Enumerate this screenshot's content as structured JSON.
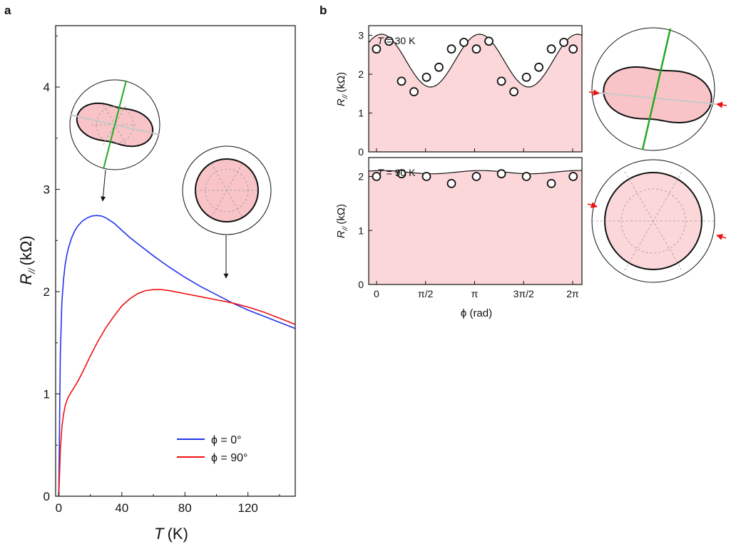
{
  "panel_a_label": "a",
  "panel_b_label": "b",
  "chart_data": [
    {
      "type": "line",
      "panel": "a",
      "xlabel_var": "T",
      "xlabel_unit": "(K)",
      "ylabel_var": "R",
      "ylabel_sub": "//",
      "ylabel_unit": "(kΩ)",
      "xlim": [
        -2,
        150
      ],
      "ylim": [
        0,
        4.6
      ],
      "x_ticks": [
        0,
        40,
        80,
        120
      ],
      "y_ticks": [
        0,
        1,
        2,
        3,
        4
      ],
      "grid": false,
      "legend_position": "bottom-right",
      "series": [
        {
          "name": "ϕ = 0°",
          "color": "#2233ee",
          "x": [
            0,
            1,
            2,
            3,
            4,
            5,
            6,
            8,
            10,
            12,
            15,
            18,
            21,
            24,
            27,
            30,
            35,
            40,
            45,
            50,
            60,
            70,
            80,
            90,
            100,
            110,
            120,
            130,
            140,
            150
          ],
          "y": [
            0.0,
            1.4,
            1.9,
            2.12,
            2.26,
            2.35,
            2.42,
            2.52,
            2.59,
            2.64,
            2.69,
            2.72,
            2.74,
            2.745,
            2.74,
            2.72,
            2.67,
            2.6,
            2.53,
            2.47,
            2.35,
            2.24,
            2.14,
            2.05,
            1.97,
            1.89,
            1.82,
            1.76,
            1.7,
            1.64
          ]
        },
        {
          "name": "ϕ = 90°",
          "color": "#ee1111",
          "x": [
            0,
            1,
            2,
            3,
            4,
            5,
            6,
            8,
            10,
            12,
            15,
            20,
            25,
            30,
            35,
            40,
            45,
            50,
            55,
            60,
            65,
            70,
            80,
            90,
            100,
            110,
            120,
            130,
            140,
            150
          ],
          "y": [
            0.0,
            0.45,
            0.68,
            0.8,
            0.88,
            0.93,
            0.97,
            1.02,
            1.07,
            1.12,
            1.21,
            1.37,
            1.52,
            1.65,
            1.76,
            1.86,
            1.93,
            1.98,
            2.01,
            2.02,
            2.02,
            2.01,
            1.98,
            1.95,
            1.92,
            1.89,
            1.85,
            1.8,
            1.74,
            1.68
          ]
        }
      ]
    },
    {
      "type": "scatter",
      "panel": "b-top",
      "annotation_var": "T",
      "annotation_value": "= 30 K",
      "ylabel_var": "R",
      "ylabel_sub": "//",
      "ylabel_unit": "(kΩ)",
      "xlim": [
        -0.25,
        6.58
      ],
      "ylim": [
        0,
        3.25
      ],
      "y_ticks": [
        0,
        1,
        2,
        3
      ],
      "x_tick_values": [
        0,
        1.5708,
        3.1416,
        4.7124,
        6.2832
      ],
      "x_tick_labels": [
        "0",
        "π/2",
        "π",
        "3π/2",
        "2π"
      ],
      "points_x": [
        0.0,
        0.4,
        0.8,
        1.2,
        1.6,
        2.0,
        2.4,
        2.8,
        3.2,
        3.6,
        4.0,
        4.4,
        4.8,
        5.2,
        5.6,
        6.0,
        6.3
      ],
      "points_y": [
        2.65,
        2.85,
        1.82,
        1.55,
        1.92,
        2.18,
        2.65,
        2.82,
        2.65,
        2.85,
        1.82,
        1.55,
        1.92,
        2.18,
        2.65,
        2.82,
        2.65
      ],
      "fit": {
        "offset": 2.35,
        "amplitude": 0.68,
        "frequency": 2,
        "phase": 0.32
      },
      "fill_color": "#fcd7d9"
    },
    {
      "type": "scatter",
      "panel": "b-bottom",
      "annotation_var": "T",
      "annotation_value": "= 90 K",
      "ylabel_var": "R",
      "ylabel_sub": "//",
      "ylabel_unit": "(kΩ)",
      "xlabel": "ϕ (rad)",
      "xlim": [
        -0.25,
        6.58
      ],
      "ylim": [
        0,
        2.35
      ],
      "y_ticks": [
        0,
        1,
        2
      ],
      "x_tick_values": [
        0,
        1.5708,
        3.1416,
        4.7124,
        6.2832
      ],
      "x_tick_labels": [
        "0",
        "π/2",
        "π",
        "3π/2",
        "2π"
      ],
      "points_x": [
        0.0,
        0.8,
        1.6,
        2.4,
        3.2,
        4.0,
        4.8,
        5.6,
        6.3
      ],
      "points_y": [
        2.0,
        2.05,
        2.0,
        1.87,
        2.0,
        2.05,
        2.0,
        1.87,
        2.0
      ],
      "fit": {
        "offset": 2.08,
        "amplitude": 0.03,
        "frequency": 2,
        "phase": 0.4
      },
      "fill_color": "#fcd7d9"
    }
  ]
}
